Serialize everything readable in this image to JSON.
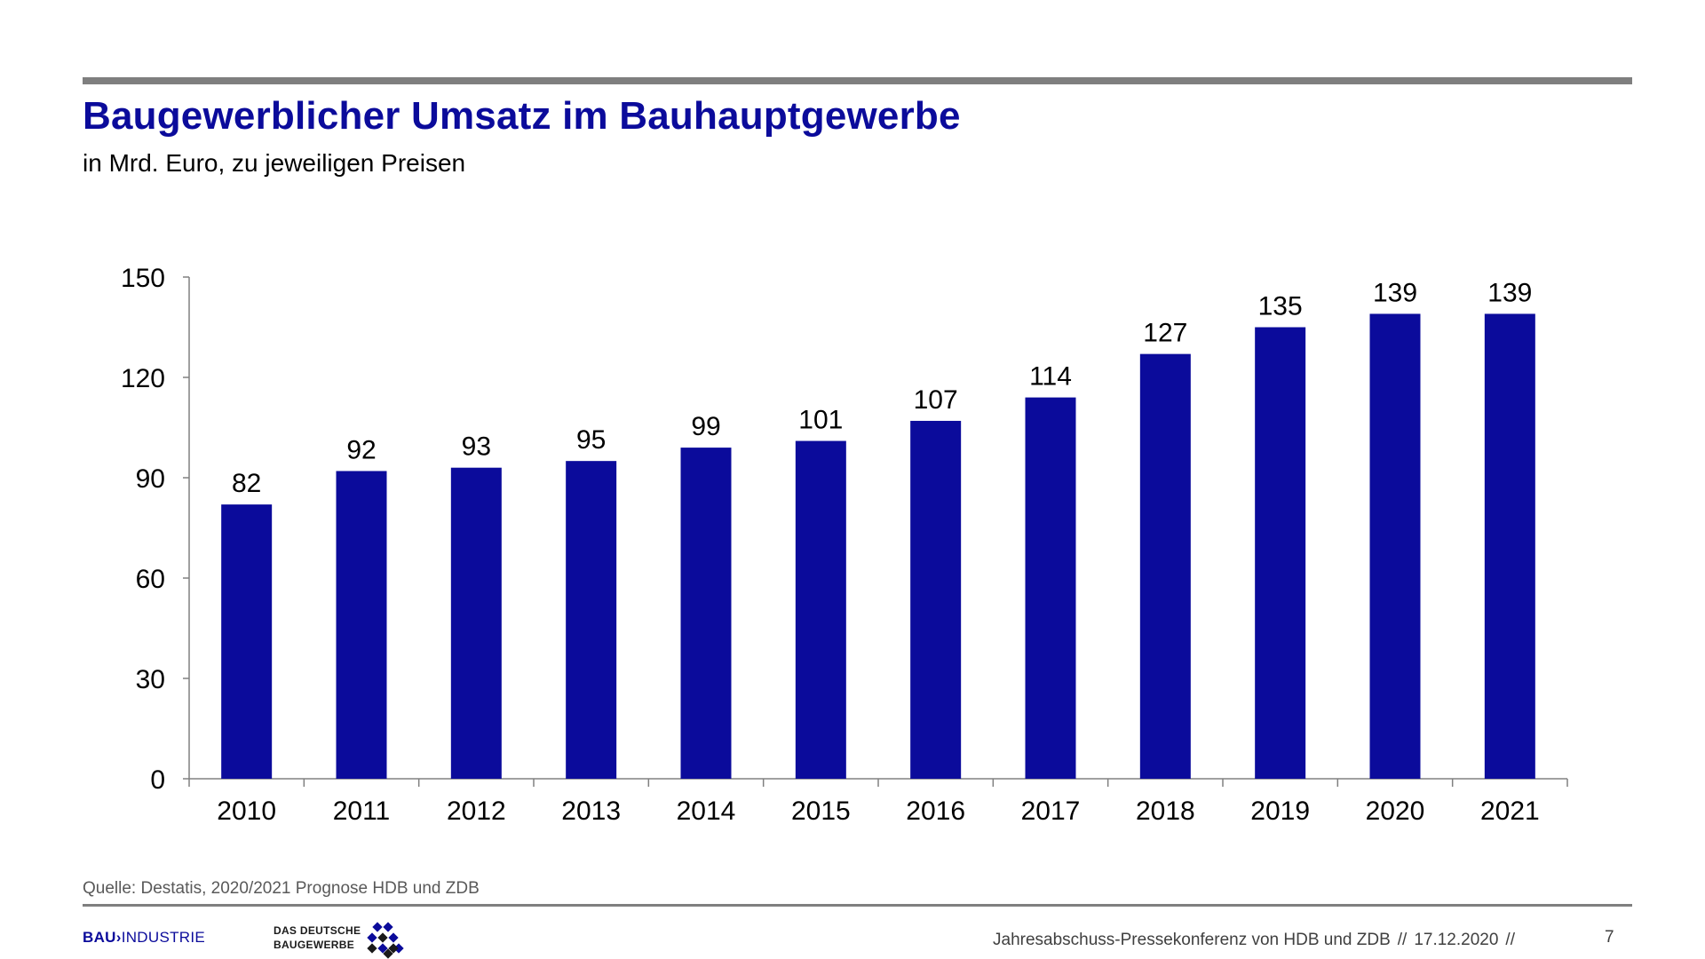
{
  "header": {
    "title": "Baugewerblicher Umsatz im Bauhauptgewerbe",
    "subtitle": "in Mrd. Euro, zu jeweiligen Preisen"
  },
  "chart_data": {
    "type": "bar",
    "title": "Baugewerblicher Umsatz im Bauhauptgewerbe",
    "subtitle": "in Mrd. Euro, zu jeweiligen Preisen",
    "xlabel": "",
    "ylabel": "",
    "categories": [
      "2010",
      "2011",
      "2012",
      "2013",
      "2014",
      "2015",
      "2016",
      "2017",
      "2018",
      "2019",
      "2020",
      "2021"
    ],
    "values": [
      82,
      92,
      93,
      95,
      99,
      101,
      107,
      114,
      127,
      135,
      139,
      139
    ],
    "data_labels": [
      "82",
      "92",
      "93",
      "95",
      "99",
      "101",
      "107",
      "114",
      "127",
      "135",
      "139",
      "139"
    ],
    "ylim": [
      0,
      150
    ],
    "yticks": [
      0,
      30,
      60,
      90,
      120,
      150
    ],
    "grid": false,
    "legend": "none",
    "bar_color": "#0b0b9b"
  },
  "footer": {
    "source": "Quelle: Destatis, 2020/2021 Prognose HDB und ZDB",
    "conference": "Jahresabschuss-Pressekonferenz von HDB und ZDB",
    "separator": "//",
    "date": "17.12.2020",
    "page_number": "7"
  },
  "logos": {
    "bauindustrie_bold": "BAU",
    "bauindustrie_mark": "›",
    "bauindustrie_rest": "INDUSTRIE",
    "zdb_line1": "DAS DEUTSCHE",
    "zdb_line2": "BAUGEWERBE"
  },
  "colors": {
    "title": "#0b0b9b",
    "bars": "#0b0b9b",
    "rule": "#7f7f7f"
  }
}
